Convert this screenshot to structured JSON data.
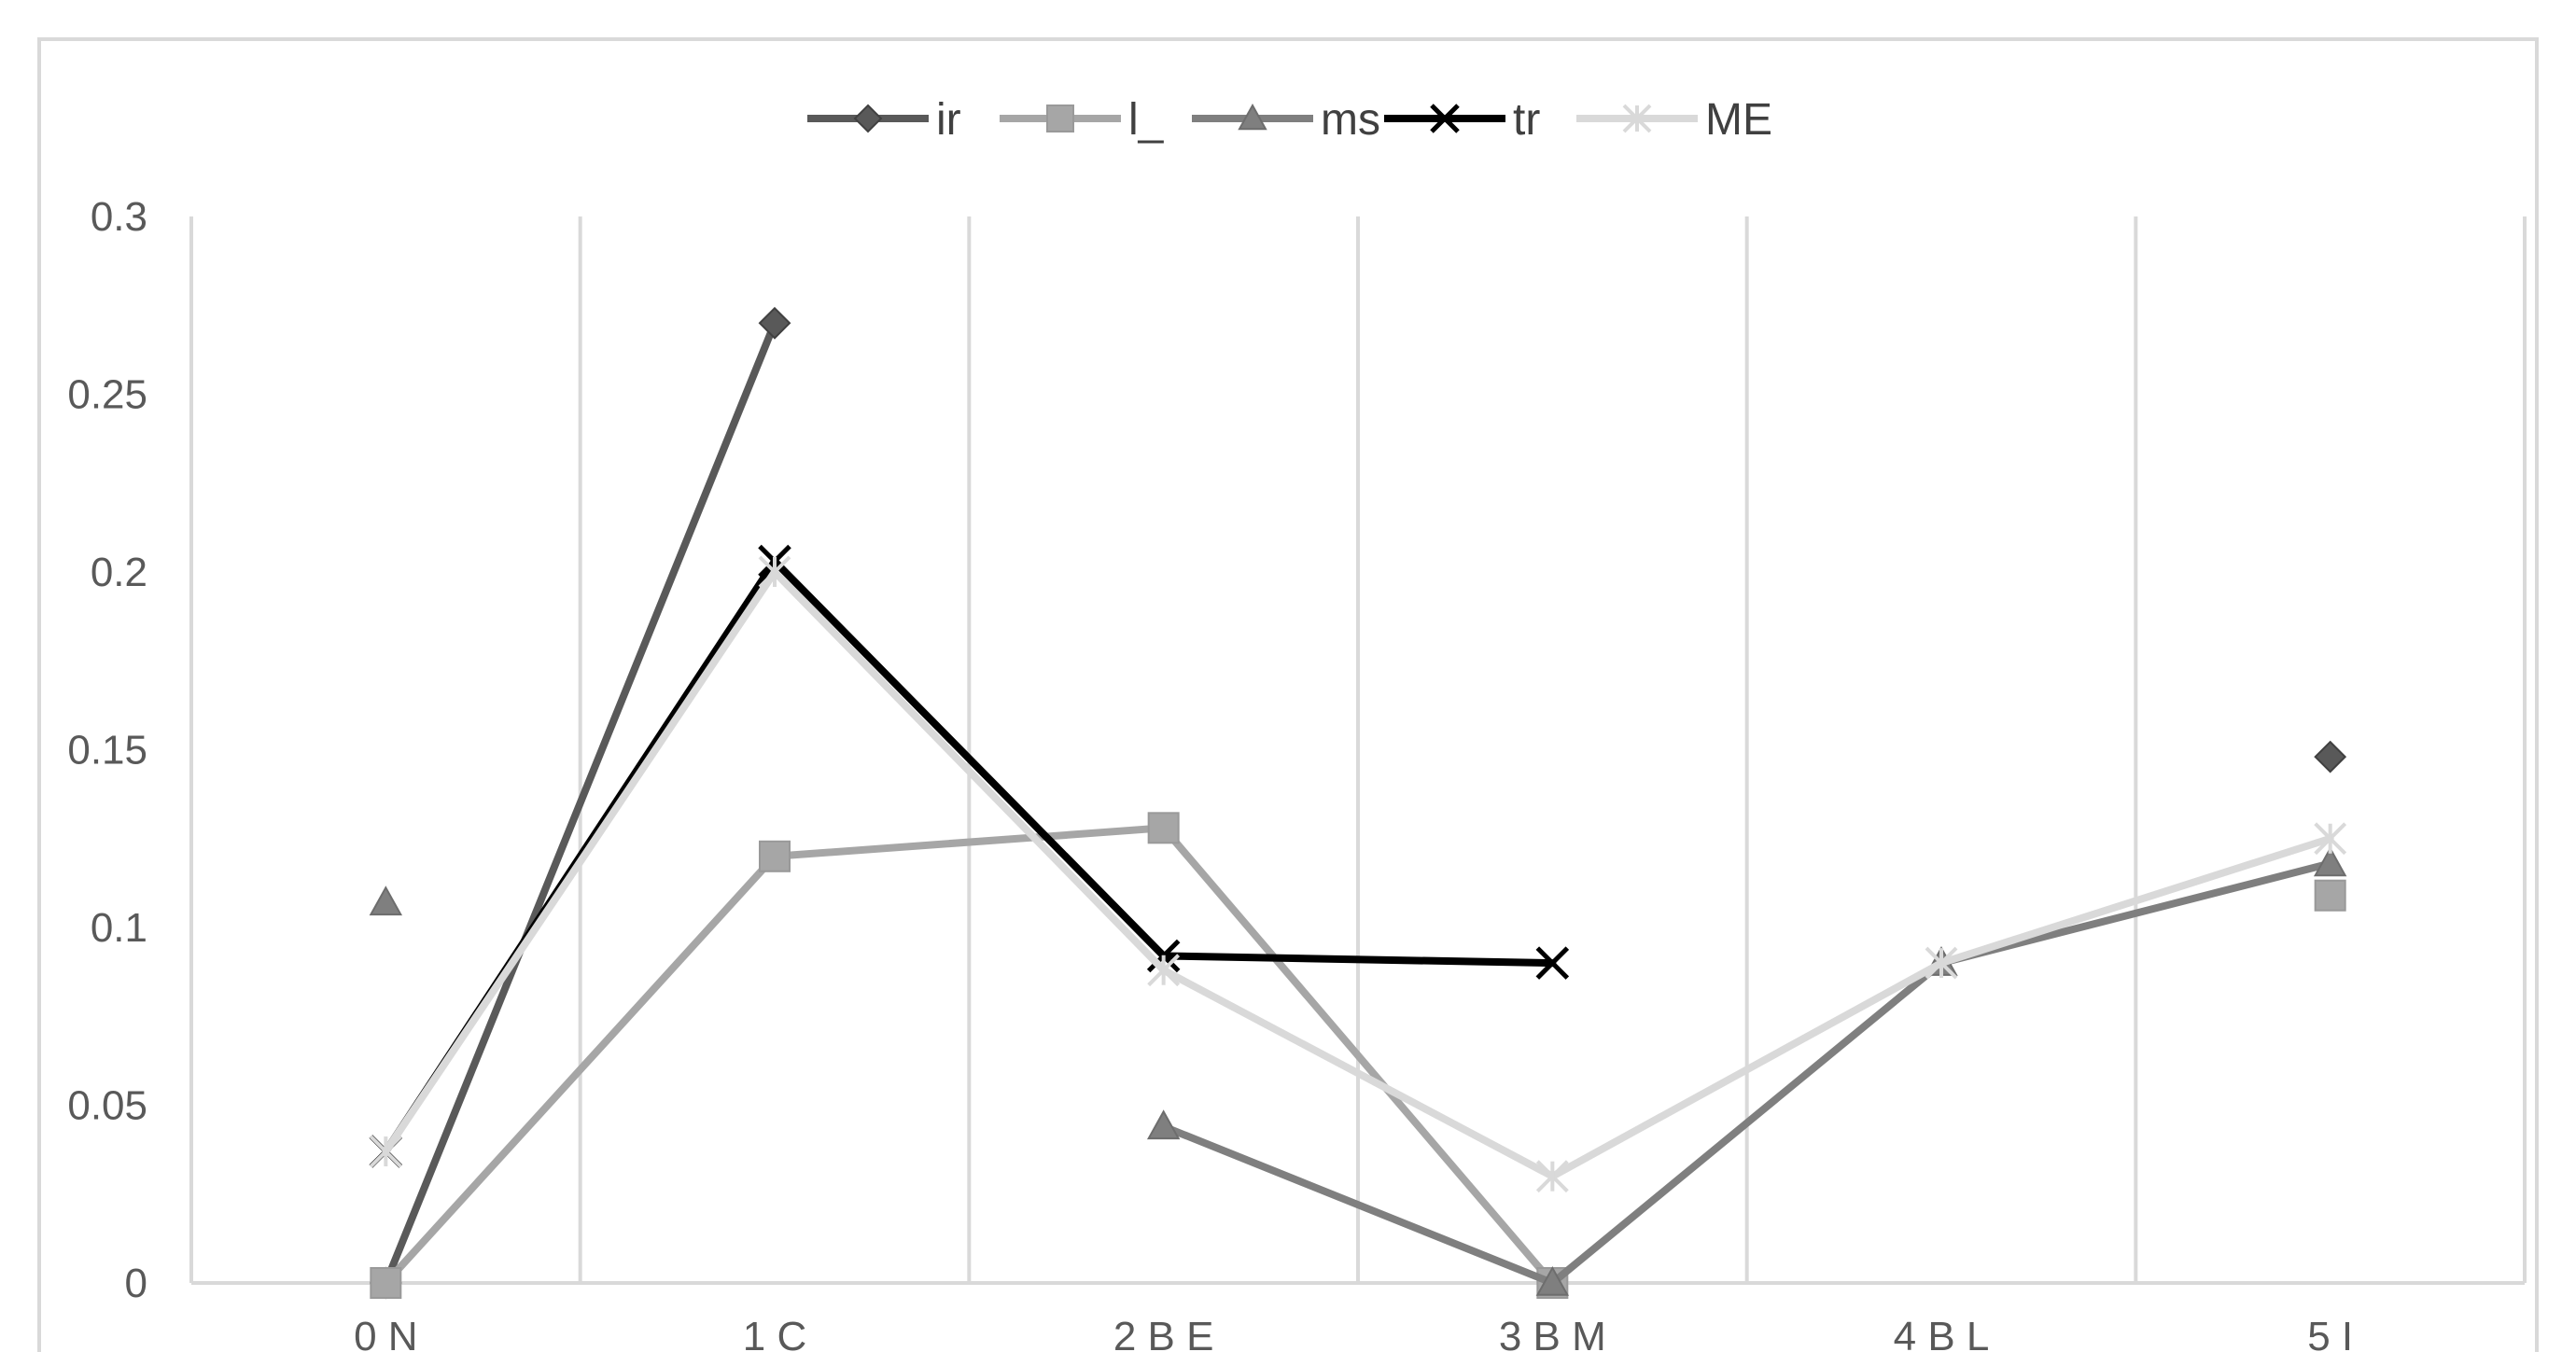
{
  "chart_data": {
    "type": "line",
    "title": "",
    "xlabel": "",
    "ylabel": "",
    "categories": [
      "0 N",
      "1 C",
      "2 B E",
      "3 B M",
      "4 B L",
      "5 I"
    ],
    "ylim": [
      0,
      0.3
    ],
    "y_ticks": [
      "0",
      "0.05",
      "0.1",
      "0.15",
      "0.2",
      "0.25",
      "0.3"
    ],
    "grid": "vertical gridlines between categories",
    "legend_position": "top-center",
    "series": [
      {
        "name": "ir",
        "color": "#595959",
        "marker": "diamond",
        "stroke": 8,
        "values": [
          0,
          0.27,
          null,
          null,
          null,
          0.148
        ]
      },
      {
        "name": "l_",
        "color": "#a6a6a6",
        "marker": "square",
        "stroke": 8,
        "values": [
          0,
          0.12,
          0.128,
          0,
          null,
          0.109
        ]
      },
      {
        "name": "ms",
        "color": "#7f7f7f",
        "marker": "triangle",
        "stroke": 8,
        "values": [
          0.107,
          null,
          0.044,
          0,
          0.09,
          0.118
        ]
      },
      {
        "name": "tr",
        "color": "#000000",
        "marker": "x",
        "stroke": 8,
        "values": [
          0.037,
          0.203,
          0.092,
          0.09,
          null,
          null
        ]
      },
      {
        "name": "ME",
        "color": "#d9d9d9",
        "marker": "star",
        "stroke": 8,
        "values": [
          0.037,
          0.2,
          0.088,
          0.03,
          0.09,
          0.125
        ]
      }
    ]
  }
}
